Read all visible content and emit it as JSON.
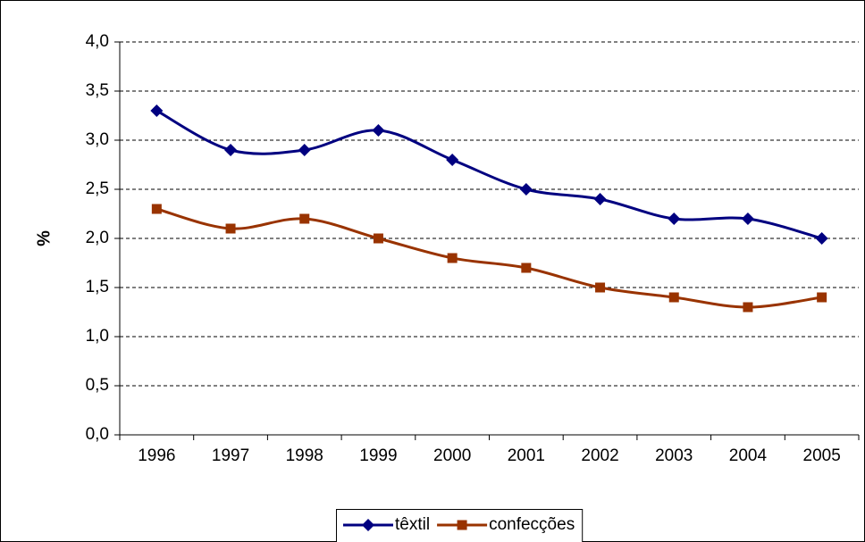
{
  "chart_data": {
    "type": "line",
    "y_label": "%",
    "categories": [
      "1996",
      "1997",
      "1998",
      "1999",
      "2000",
      "2001",
      "2002",
      "2003",
      "2004",
      "2005"
    ],
    "series": [
      {
        "name": "têxtil",
        "color": "#000080",
        "marker": "diamond",
        "values": [
          3.3,
          2.9,
          2.9,
          3.1,
          2.8,
          2.5,
          2.4,
          2.2,
          2.2,
          2.0
        ]
      },
      {
        "name": "confecções",
        "color": "#993300",
        "marker": "square",
        "values": [
          2.3,
          2.1,
          2.2,
          2.0,
          1.8,
          1.7,
          1.5,
          1.4,
          1.3,
          1.4
        ]
      }
    ],
    "ylim": [
      0,
      4
    ],
    "yticks": [
      {
        "value": 0,
        "label": "0,0"
      },
      {
        "value": 0.5,
        "label": "0,5"
      },
      {
        "value": 1,
        "label": "1,0"
      },
      {
        "value": 1.5,
        "label": "1,5"
      },
      {
        "value": 2,
        "label": "2,0"
      },
      {
        "value": 2.5,
        "label": "2,5"
      },
      {
        "value": 3,
        "label": "3,0"
      },
      {
        "value": 3.5,
        "label": "3,5"
      },
      {
        "value": 4,
        "label": "4,0"
      }
    ],
    "grid": true,
    "smooth": true,
    "legend": "bottom"
  }
}
